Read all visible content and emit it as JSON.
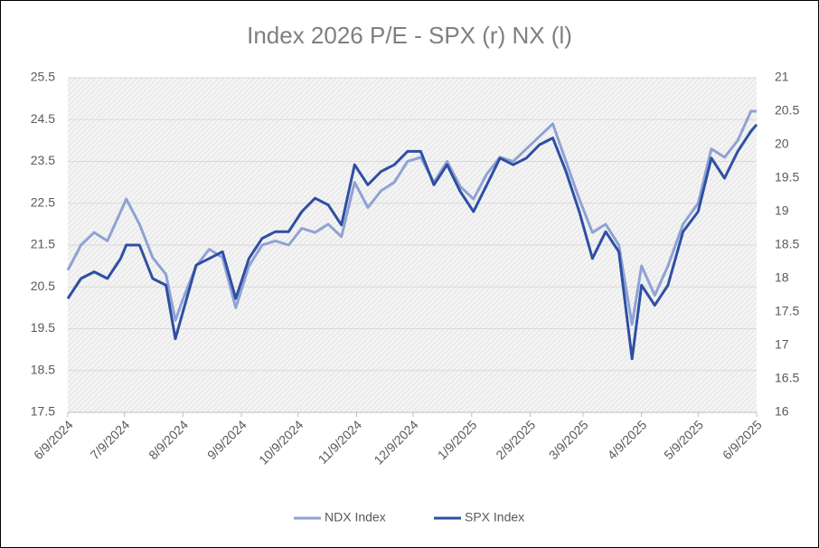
{
  "chart_data": {
    "type": "line",
    "title": "Index 2026 P/E - SPX (r) NX (l)",
    "x": [
      "6/9/2024",
      "6/16/2024",
      "6/23/2024",
      "6/30/2024",
      "7/7/2024",
      "7/10/2024",
      "7/17/2024",
      "7/24/2024",
      "7/31/2024",
      "8/5/2024",
      "8/9/2024",
      "8/16/2024",
      "8/23/2024",
      "8/30/2024",
      "9/6/2024",
      "9/13/2024",
      "9/20/2024",
      "9/27/2024",
      "10/4/2024",
      "10/11/2024",
      "10/18/2024",
      "10/25/2024",
      "11/1/2024",
      "11/8/2024",
      "11/15/2024",
      "11/22/2024",
      "11/29/2024",
      "12/6/2024",
      "12/13/2024",
      "12/20/2024",
      "12/27/2024",
      "1/3/2025",
      "1/10/2025",
      "1/17/2025",
      "1/24/2025",
      "1/31/2025",
      "2/7/2025",
      "2/14/2025",
      "2/21/2025",
      "2/28/2025",
      "3/7/2025",
      "3/14/2025",
      "3/21/2025",
      "3/28/2025",
      "4/4/2025",
      "4/9/2025",
      "4/16/2025",
      "4/23/2025",
      "5/1/2025",
      "5/9/2025",
      "5/16/2025",
      "5/23/2025",
      "5/30/2025",
      "6/6/2025",
      "6/9/2025"
    ],
    "series": [
      {
        "name": "NDX Index",
        "color": "#8fa2d4",
        "values": [
          20.9,
          21.5,
          21.8,
          21.6,
          22.3,
          22.6,
          22.0,
          21.2,
          20.8,
          19.7,
          20.2,
          21.0,
          21.4,
          21.2,
          20.0,
          21.0,
          21.5,
          21.6,
          21.5,
          21.9,
          21.8,
          22.0,
          21.7,
          23.0,
          22.4,
          22.8,
          23.0,
          23.5,
          23.6,
          23.0,
          23.5,
          22.9,
          22.6,
          23.2,
          23.6,
          23.5,
          23.8,
          24.1,
          24.4,
          23.5,
          22.6,
          21.8,
          22.0,
          21.5,
          19.6,
          21.0,
          20.3,
          21.0,
          22.0,
          22.5,
          23.8,
          23.6,
          24.0,
          24.7,
          24.7
        ]
      },
      {
        "name": "SPX Index",
        "color": "#2e4fa3",
        "axis": "y2",
        "values": [
          17.7,
          18.0,
          18.1,
          18.0,
          18.3,
          18.5,
          18.5,
          18.0,
          17.9,
          17.1,
          17.5,
          18.2,
          18.3,
          18.4,
          17.7,
          18.3,
          18.6,
          18.7,
          18.7,
          19.0,
          19.2,
          19.1,
          18.8,
          19.7,
          19.4,
          19.6,
          19.7,
          19.9,
          19.9,
          19.4,
          19.7,
          19.3,
          19.0,
          19.4,
          19.8,
          19.7,
          19.8,
          20.0,
          20.1,
          19.6,
          19.0,
          18.3,
          18.7,
          18.4,
          16.8,
          17.9,
          17.6,
          17.9,
          18.7,
          19.0,
          19.8,
          19.5,
          19.9,
          20.2,
          20.3
        ]
      }
    ],
    "xticks": [
      "6/9/2024",
      "7/9/2024",
      "8/9/2024",
      "9/9/2024",
      "10/9/2024",
      "11/9/2024",
      "12/9/2024",
      "1/9/2025",
      "2/9/2025",
      "3/9/2025",
      "4/9/2025",
      "5/9/2025",
      "6/9/2025"
    ],
    "ylim": [
      17.5,
      25.5
    ],
    "yticks": [
      17.5,
      18.5,
      19.5,
      20.5,
      21.5,
      22.5,
      23.5,
      24.5,
      25.5
    ],
    "y2lim": [
      16,
      21
    ],
    "y2ticks": [
      16,
      16.5,
      17,
      17.5,
      18,
      18.5,
      19,
      19.5,
      20,
      20.5,
      21
    ],
    "grid": true,
    "legend": "bottom"
  }
}
